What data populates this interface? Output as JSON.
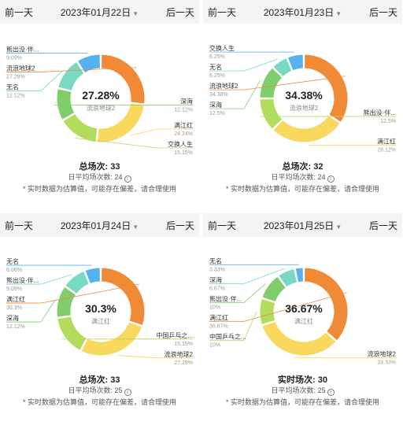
{
  "nav": {
    "prev": "前一天",
    "next": "后一天"
  },
  "footnote": "* 实时数据为估算值，可能存在偏差，请合理使用",
  "colors": {
    "orange": "#f08a37",
    "yellow": "#f8d85d",
    "lime": "#b2dc5c",
    "green": "#7fcd6b",
    "teal": "#78dac3",
    "blue": "#56b1ef",
    "lightblue": "#a8d8f6"
  },
  "chart_data": [
    {
      "type": "pie",
      "date": "2023年01月22日",
      "center_value": "27.28%",
      "center_label": "流浪地球2",
      "total_label": "总场次:",
      "total_value": "33",
      "avg_label": "日平均场次数:",
      "avg_value": "24",
      "slices": [
        {
          "name": "流浪地球2",
          "pct_label": "27.28%",
          "value": 27.28,
          "color": "#f08a37",
          "side": "left"
        },
        {
          "name": "满江红",
          "pct_label": "24.24%",
          "value": 24.24,
          "color": "#f8d85d",
          "side": "right"
        },
        {
          "name": "交换人生",
          "pct_label": "15.15%",
          "value": 15.15,
          "color": "#b2dc5c",
          "side": "right"
        },
        {
          "name": "深海",
          "pct_label": "12.12%",
          "value": 12.12,
          "color": "#7fcd6b",
          "side": "right"
        },
        {
          "name": "无名",
          "pct_label": "12.12%",
          "value": 12.12,
          "color": "#78dac3",
          "side": "left"
        },
        {
          "name": "熊出没·伴...",
          "pct_label": "9.09%",
          "value": 9.09,
          "color": "#56b1ef",
          "side": "left"
        }
      ]
    },
    {
      "type": "pie",
      "date": "2023年01月23日",
      "center_value": "34.38%",
      "center_label": "流浪地球2",
      "total_label": "总场次:",
      "total_value": "32",
      "avg_label": "日平均场次数:",
      "avg_value": "24",
      "slices": [
        {
          "name": "流浪地球2",
          "pct_label": "34.38%",
          "value": 34.38,
          "color": "#f08a37",
          "side": "left"
        },
        {
          "name": "满江红",
          "pct_label": "28.12%",
          "value": 28.12,
          "color": "#f8d85d",
          "side": "right"
        },
        {
          "name": "熊出没·伴...",
          "pct_label": "12.5%",
          "value": 12.5,
          "color": "#b2dc5c",
          "side": "right"
        },
        {
          "name": "深海",
          "pct_label": "12.5%",
          "value": 12.5,
          "color": "#7fcd6b",
          "side": "left"
        },
        {
          "name": "无名",
          "pct_label": "6.25%",
          "value": 6.25,
          "color": "#78dac3",
          "side": "left"
        },
        {
          "name": "交换人生",
          "pct_label": "6.25%",
          "value": 6.25,
          "color": "#56b1ef",
          "side": "left"
        }
      ]
    },
    {
      "type": "pie",
      "date": "2023年01月24日",
      "center_value": "30.3%",
      "center_label": "满江红",
      "total_label": "总场次:",
      "total_value": "33",
      "avg_label": "日平均场次数:",
      "avg_value": "25",
      "slices": [
        {
          "name": "满江红",
          "pct_label": "30.3%",
          "value": 30.3,
          "color": "#f08a37",
          "side": "left"
        },
        {
          "name": "流浪地球2",
          "pct_label": "27.28%",
          "value": 27.28,
          "color": "#f8d85d",
          "side": "right"
        },
        {
          "name": "中国乒乓之...",
          "pct_label": "15.15%",
          "value": 15.15,
          "color": "#b2dc5c",
          "side": "right"
        },
        {
          "name": "深海",
          "pct_label": "12.12%",
          "value": 12.12,
          "color": "#7fcd6b",
          "side": "left"
        },
        {
          "name": "熊出没·伴...",
          "pct_label": "9.09%",
          "value": 9.09,
          "color": "#78dac3",
          "side": "left"
        },
        {
          "name": "无名",
          "pct_label": "6.06%",
          "value": 6.06,
          "color": "#56b1ef",
          "side": "left"
        }
      ]
    },
    {
      "type": "pie",
      "date": "2023年01月25日",
      "center_value": "36.67%",
      "center_label": "满江红",
      "total_label": "实时场次:",
      "total_value": "30",
      "avg_label": "日平均场次数:",
      "avg_value": "25",
      "slices": [
        {
          "name": "满江红",
          "pct_label": "36.67%",
          "value": 36.67,
          "color": "#f08a37",
          "side": "left"
        },
        {
          "name": "流浪地球2",
          "pct_label": "33.33%",
          "value": 33.33,
          "color": "#f8d85d",
          "side": "right"
        },
        {
          "name": "中国乒乓之...",
          "pct_label": "10%",
          "value": 10,
          "color": "#b2dc5c",
          "side": "left"
        },
        {
          "name": "熊出没·伴...",
          "pct_label": "10%",
          "value": 10,
          "color": "#7fcd6b",
          "side": "left"
        },
        {
          "name": "深海",
          "pct_label": "6.67%",
          "value": 6.67,
          "color": "#78dac3",
          "side": "left"
        },
        {
          "name": "无名",
          "pct_label": "3.33%",
          "value": 3.33,
          "color": "#56b1ef",
          "side": "left"
        }
      ]
    }
  ]
}
